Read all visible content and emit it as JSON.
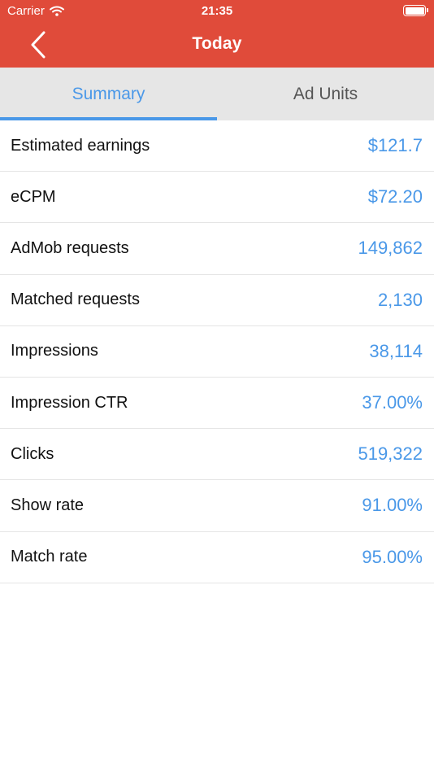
{
  "colors": {
    "header": "#E04B3A",
    "accent": "#4A98E8",
    "tabbar": "#E6E6E6"
  },
  "status_bar": {
    "carrier": "Carrier",
    "time": "21:35"
  },
  "navbar": {
    "title": "Today",
    "back_icon": "chevron-left-icon"
  },
  "tabs": [
    {
      "label": "Summary",
      "active": true
    },
    {
      "label": "Ad Units",
      "active": false
    }
  ],
  "metrics": [
    {
      "label": "Estimated earnings",
      "value": "$121.7"
    },
    {
      "label": "eCPM",
      "value": "$72.20"
    },
    {
      "label": "AdMob requests",
      "value": "149,862"
    },
    {
      "label": "Matched requests",
      "value": "2,130"
    },
    {
      "label": "Impressions",
      "value": "38,114"
    },
    {
      "label": "Impression CTR",
      "value": "37.00%"
    },
    {
      "label": "Clicks",
      "value": "519,322"
    },
    {
      "label": "Show rate",
      "value": "91.00%"
    },
    {
      "label": "Match rate",
      "value": "95.00%"
    }
  ]
}
